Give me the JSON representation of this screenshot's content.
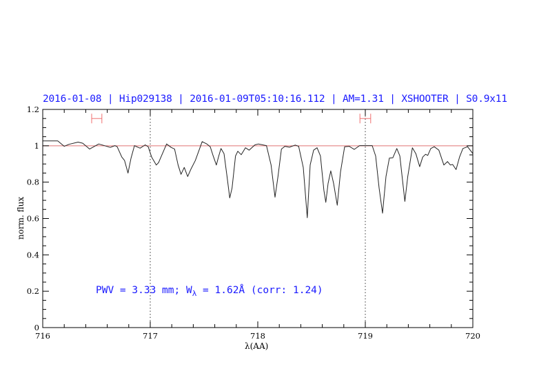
{
  "title": "2016-01-08 | Hip029138 | 2016-01-09T05:10:16.112 | AM=1.31 | XSHOOTER | S0.9x11",
  "annotation": {
    "text_a": "PWV = 3.33 mm; W",
    "subscript": "λ",
    "text_b": " = 1.62Å (corr: 1.24)"
  },
  "colors": {
    "text": "#1a1aff",
    "spectrum": "#222222",
    "continuum": "#e07070",
    "markers": "#f07070",
    "axes": "#000000"
  },
  "chart_data": {
    "type": "line",
    "xlabel": "λ(AA)",
    "ylabel": "norm. flux",
    "xlim": [
      716,
      720
    ],
    "ylim": [
      0,
      1.2
    ],
    "xticks": [
      "716",
      "717",
      "718",
      "719",
      "720"
    ],
    "yticks": [
      "0",
      "0.2",
      "0.4",
      "0.6",
      "0.8",
      "1",
      "1.2"
    ],
    "x_minor_step": 0.2,
    "y_minor_step": 0.05,
    "continuum_level": 1.0,
    "dotted_vlines": [
      717,
      719
    ],
    "range_markers": [
      {
        "x": [
          716.455,
          716.55
        ],
        "y": 1.15
      },
      {
        "x": [
          718.95,
          719.05
        ],
        "y": 1.15
      }
    ],
    "grid": false,
    "series": [
      {
        "x": [
          716.0,
          716.14,
          716.2,
          716.244,
          716.329,
          716.372,
          716.436,
          716.521,
          716.607,
          716.628,
          716.671,
          716.692,
          716.735,
          716.761,
          716.793,
          716.821,
          716.853,
          716.874,
          716.906,
          716.953,
          716.981,
          717.013,
          717.056,
          717.077,
          717.152,
          717.194,
          717.226,
          717.259,
          717.286,
          717.316,
          717.348,
          717.376,
          717.419,
          717.483,
          717.526,
          717.558,
          717.585,
          717.615,
          717.637,
          717.658,
          717.686,
          717.714,
          717.739,
          717.761,
          717.793,
          717.814,
          717.846,
          717.885,
          717.919,
          717.974,
          718.006,
          718.081,
          718.124,
          718.16,
          718.188,
          718.22,
          718.252,
          718.295,
          718.348,
          718.38,
          718.423,
          718.46,
          718.487,
          718.519,
          718.551,
          718.583,
          718.615,
          718.633,
          718.654,
          718.679,
          718.705,
          718.739,
          718.769,
          718.808,
          718.85,
          718.897,
          718.947,
          719.064,
          719.096,
          719.128,
          719.16,
          719.192,
          719.224,
          719.256,
          719.293,
          719.321,
          719.368,
          719.395,
          719.438,
          719.47,
          719.506,
          719.534,
          719.56,
          719.581,
          719.609,
          719.641,
          719.684,
          719.731,
          719.765,
          719.791,
          719.812,
          719.844,
          719.876,
          719.908,
          719.951,
          720.0
        ],
        "y": [
          1.027,
          1.027,
          0.997,
          1.008,
          1.02,
          1.014,
          0.982,
          1.01,
          0.995,
          0.991,
          1.001,
          0.995,
          0.938,
          0.919,
          0.85,
          0.932,
          1.001,
          0.995,
          0.987,
          1.005,
          0.995,
          0.938,
          0.894,
          0.907,
          1.01,
          0.991,
          0.982,
          0.894,
          0.843,
          0.881,
          0.831,
          0.869,
          0.919,
          1.023,
          1.01,
          0.995,
          0.944,
          0.894,
          0.944,
          0.985,
          0.957,
          0.831,
          0.713,
          0.768,
          0.944,
          0.97,
          0.951,
          0.989,
          0.976,
          1.005,
          1.01,
          1.001,
          0.894,
          0.717,
          0.831,
          0.982,
          0.997,
          0.992,
          1.004,
          0.997,
          0.881,
          0.604,
          0.894,
          0.976,
          0.989,
          0.944,
          0.755,
          0.689,
          0.793,
          0.862,
          0.793,
          0.673,
          0.856,
          0.995,
          0.997,
          0.98,
          1.001,
          1.001,
          0.944,
          0.768,
          0.629,
          0.831,
          0.932,
          0.934,
          0.985,
          0.944,
          0.694,
          0.831,
          0.989,
          0.957,
          0.885,
          0.938,
          0.953,
          0.947,
          0.985,
          0.995,
          0.976,
          0.894,
          0.913,
          0.894,
          0.897,
          0.869,
          0.938,
          0.985,
          0.995,
          0.957
        ]
      }
    ]
  }
}
